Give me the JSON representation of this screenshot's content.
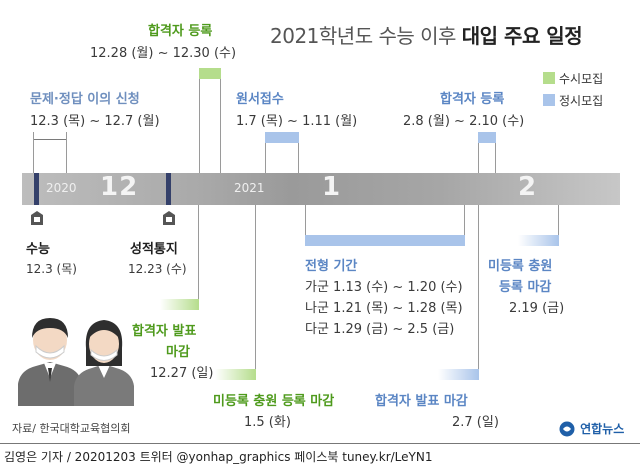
{
  "title": {
    "regular": "2021학년도 수능 이후",
    "bold": "대입 주요 일정"
  },
  "legend": [
    {
      "label": "수시모집",
      "color": "#b5dd8c"
    },
    {
      "label": "정시모집",
      "color": "#a9c4ea"
    }
  ],
  "timeline": {
    "year_2020": "2020",
    "year_2021": "2021",
    "month_12": "12",
    "month_1": "1",
    "month_2": "2"
  },
  "events": {
    "pass_register_early": {
      "label": "합격자 등록",
      "date": "12.28 (월) ~ 12.30 (수)"
    },
    "objection": {
      "label": "문제·정답 이의 신청",
      "date": "12.3 (목) ~ 12.7 (월)"
    },
    "application": {
      "label": "원서접수",
      "date": "1.7 (목) ~ 1.11 (월)"
    },
    "pass_register_regular": {
      "label": "합격자 등록",
      "date": "2.8 (월) ~ 2.10 (수)"
    },
    "csat": {
      "label": "수능",
      "date": "12.3 (목)"
    },
    "score_notice": {
      "label": "성적통지",
      "date": "12.23 (수)"
    },
    "screening": {
      "label": "전형 기간",
      "lines": [
        "가군 1.13 (수) ~ 1.20 (수)",
        "나군 1.21 (목) ~ 1.28 (목)",
        "다군 1.29 (금) ~ 2.5 (금)"
      ]
    },
    "unregistered_regular": {
      "label_line1": "미등록 충원",
      "label_line2": "등록 마감",
      "date": "2.19 (금)"
    },
    "pass_announce_early": {
      "label_line1": "합격자 발표",
      "label_line2": "마감",
      "date": "12.27 (일)"
    },
    "unregistered_early": {
      "label": "미등록 충원 등록 마감",
      "date": "1.5 (화)"
    },
    "pass_announce_regular": {
      "label": "합격자 발표 마감",
      "date": "2.7 (일)"
    }
  },
  "source": "자료/ 한국대학교육협의회",
  "logo": "연합뉴스",
  "footer": "김영은 기자 / 20201203  트위터 @yonhap_graphics  페이스북 tuney.kr/LeYN1"
}
